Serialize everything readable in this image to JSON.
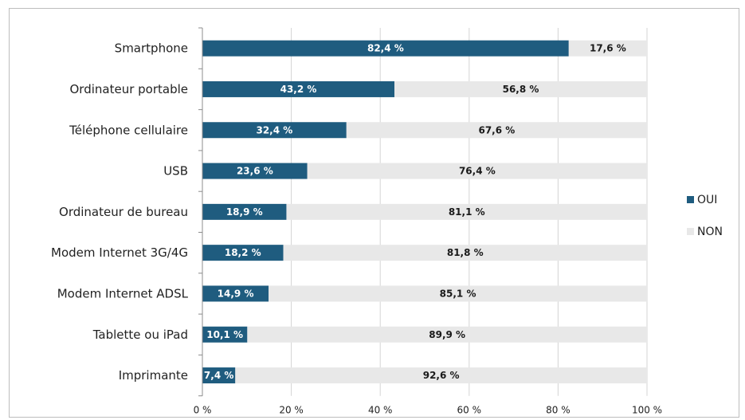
{
  "chart_data": {
    "type": "bar",
    "orientation": "horizontal",
    "stacked": true,
    "categories": [
      "Smartphone",
      "Ordinateur portable",
      "Téléphone cellulaire",
      "USB",
      "Ordinateur de bureau",
      "Modem Internet 3G/4G",
      "Modem Internet ADSL",
      "Tablette ou iPad",
      "Imprimante"
    ],
    "series": [
      {
        "name": "OUI",
        "color": "#1f5c7f",
        "values": [
          82.4,
          43.2,
          32.4,
          23.6,
          18.9,
          18.2,
          14.9,
          10.1,
          7.4
        ],
        "labels": [
          "82,4 %",
          "43,2 %",
          "32,4 %",
          "23,6 %",
          "18,9 %",
          "18,2 %",
          "14,9 %",
          "10,1 %",
          "7,4 %"
        ]
      },
      {
        "name": "NON",
        "color": "#e8e8e8",
        "values": [
          17.6,
          56.8,
          67.6,
          76.4,
          81.1,
          81.8,
          85.1,
          89.9,
          92.6
        ],
        "labels": [
          "17,6 %",
          "56,8 %",
          "67,6 %",
          "76,4 %",
          "81,1 %",
          "81,8 %",
          "85,1 %",
          "89,9 %",
          "92,6 %"
        ]
      }
    ],
    "xlim": [
      0,
      100
    ],
    "xticks": [
      "0 %",
      "20 %",
      "40 %",
      "60 %",
      "80 %",
      "100 %"
    ],
    "grid": true,
    "legend_position": "right"
  }
}
